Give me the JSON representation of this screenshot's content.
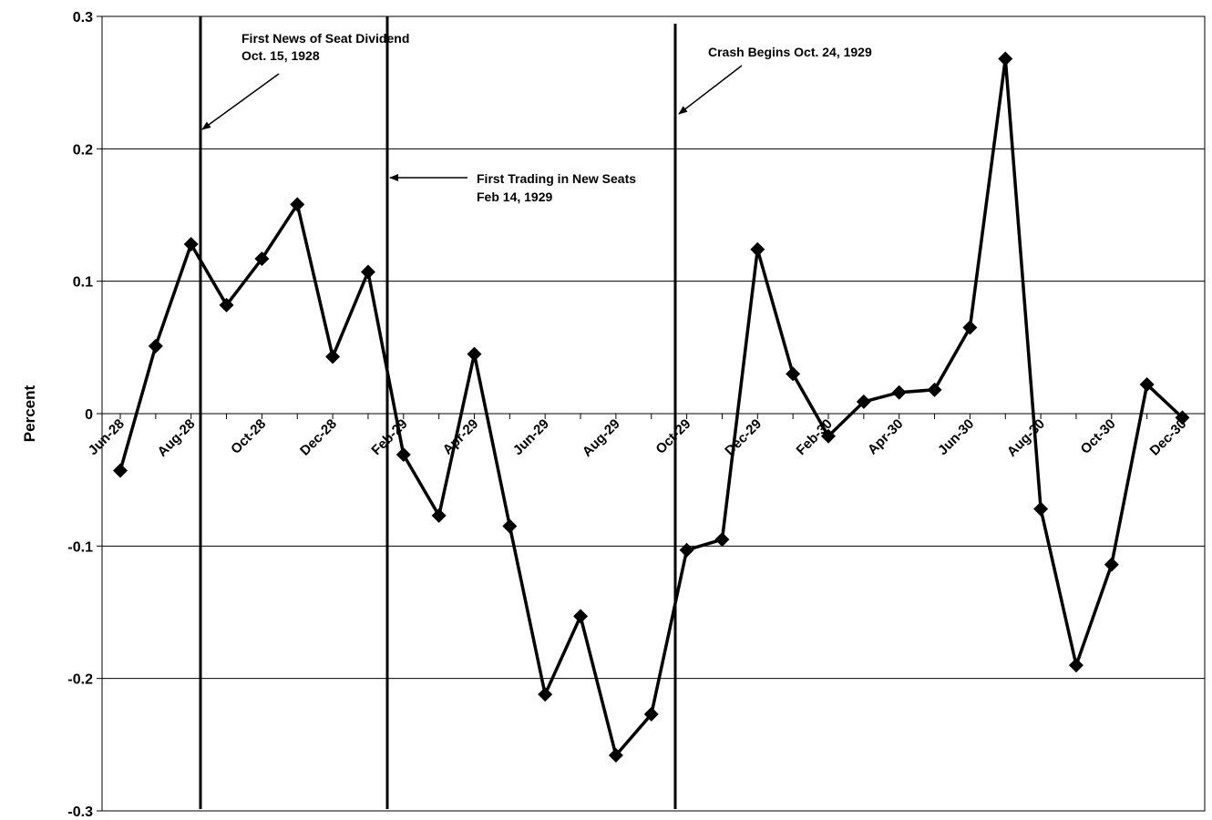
{
  "chart_data": {
    "type": "line",
    "title": "",
    "xlabel": "",
    "ylabel": "Percent",
    "ylim": [
      -0.3,
      0.3
    ],
    "yticks": [
      "0.3",
      "0.2",
      "0.1",
      "0",
      "-0.1",
      "-0.2",
      "-0.3"
    ],
    "grid": true,
    "x_tick_labels": [
      "Jun-28",
      "Aug-28",
      "Oct-28",
      "Dec-28",
      "Feb-29",
      "Apr-29",
      "Jun-29",
      "Aug-29",
      "Oct-29",
      "Dec-29",
      "Feb-30",
      "Apr-30",
      "Jun-30",
      "Aug-30",
      "Oct-30",
      "Dec-30"
    ],
    "series": [
      {
        "name": "",
        "x": [
          "Jun-28",
          "Jul-28",
          "Aug-28",
          "Sep-28",
          "Oct-28",
          "Nov-28",
          "Dec-28",
          "Jan-29",
          "Feb-29",
          "Mar-29",
          "Apr-29",
          "May-29",
          "Jun-29",
          "Jul-29",
          "Aug-29",
          "Sep-29",
          "Oct-29",
          "Nov-29",
          "Dec-29",
          "Jan-30",
          "Feb-30",
          "Mar-30",
          "Apr-30",
          "May-30",
          "Jun-30",
          "Jul-30",
          "Aug-30",
          "Sep-30",
          "Oct-30",
          "Nov-30",
          "Dec-30"
        ],
        "values": [
          -0.043,
          0.051,
          0.128,
          0.082,
          0.117,
          0.158,
          0.043,
          0.107,
          -0.031,
          -0.077,
          0.045,
          -0.085,
          -0.212,
          -0.153,
          -0.258,
          -0.227,
          -0.103,
          -0.095,
          0.124,
          0.03,
          -0.017,
          0.009,
          0.016,
          0.018,
          0.065,
          0.268,
          -0.072,
          -0.19,
          -0.114,
          0.022,
          -0.003
        ]
      }
    ],
    "event_lines": [
      {
        "date": "Oct. 15, 1928"
      },
      {
        "date": "Feb 14, 1929"
      },
      {
        "date": "Oct. 24, 1929"
      }
    ],
    "annotations": [
      {
        "lines": [
          "First News of Seat Dividend",
          " Oct. 15, 1928"
        ]
      },
      {
        "lines": [
          "First Trading in New Seats",
          "Feb 14, 1929"
        ]
      },
      {
        "lines": [
          "Crash Begins Oct. 24, 1929"
        ]
      }
    ]
  }
}
